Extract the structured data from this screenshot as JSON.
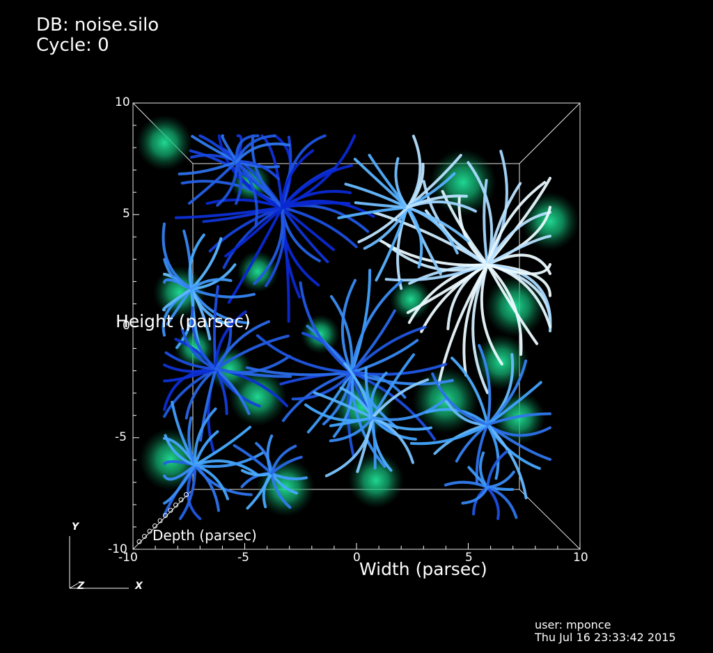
{
  "header": {
    "db_line": "DB: noise.silo",
    "cycle_line": "Cycle: 0"
  },
  "axes": {
    "x_title": "Width (parsec)",
    "y_title": "Height (parsec)",
    "z_title": "Depth (parsec)",
    "x_ticks": [
      "-10",
      "-5",
      "0",
      "5",
      "10"
    ],
    "y_ticks": [
      "10",
      "5",
      "0",
      "-5",
      "-10"
    ]
  },
  "triad": {
    "y": "Y",
    "z": "Z",
    "x": "X"
  },
  "footer": {
    "user_line": "user: mponce",
    "date_line": "Thu Jul 16 23:33:42 2015"
  },
  "colors": {
    "background": "#000000",
    "streamline_dark": "#0a2fd0",
    "streamline_light": "#bfe8ff",
    "volume_glow": "#1ee09a"
  }
}
